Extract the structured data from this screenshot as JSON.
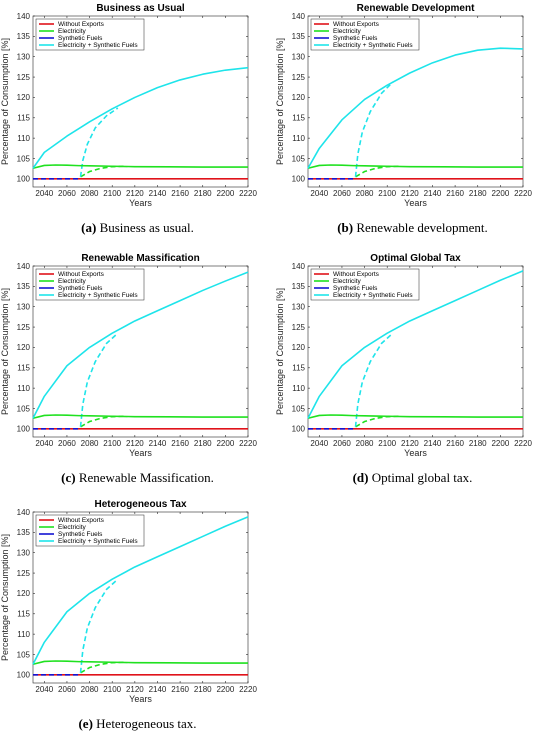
{
  "colors": {
    "without_exports": "#e0131a",
    "electricity": "#1fe11f",
    "synthetic_fuels": "#1414d2",
    "electricity_synthetic": "#1ee4ea"
  },
  "chart_data": [
    {
      "type": "line",
      "title": "Business as Usual",
      "caption_label": "(a)",
      "caption_text": "Business as usual.",
      "xlabel": "Years",
      "ylabel": "Percentage of Consumption [%]",
      "xlim": [
        2030,
        2220
      ],
      "ylim": [
        98,
        140
      ],
      "xticks": [
        2040,
        2060,
        2080,
        2100,
        2120,
        2140,
        2160,
        2180,
        2200,
        2220
      ],
      "yticks": [
        100,
        105,
        110,
        115,
        120,
        125,
        130,
        135,
        140
      ],
      "grid": false,
      "legend": "top-left",
      "series": [
        {
          "name": "Without Exports",
          "color": "#e0131a",
          "style": "solid",
          "x": [
            2030,
            2220
          ],
          "y": [
            100,
            100
          ]
        },
        {
          "name": "Electricity",
          "color": "#1fe11f",
          "style": "solid",
          "x": [
            2030,
            2040,
            2050,
            2060,
            2070,
            2080,
            2100,
            2120,
            2150,
            2180,
            2220
          ],
          "y": [
            102.6,
            103.3,
            103.4,
            103.35,
            103.25,
            103.2,
            103.1,
            103.0,
            102.95,
            102.9,
            102.9
          ]
        },
        {
          "name": "Synthetic Fuels",
          "color": "#1414d2",
          "style": "dashed",
          "x": [
            2030,
            2072
          ],
          "y": [
            100,
            100
          ]
        },
        {
          "name": "Electricity + Synthetic Fuels",
          "color": "#1ee4ea",
          "style": "solid",
          "x": [
            2030,
            2040,
            2060,
            2080,
            2100,
            2120,
            2140,
            2160,
            2180,
            2200,
            2220
          ],
          "y": [
            102.6,
            106.5,
            110.5,
            114.0,
            117.2,
            120.0,
            122.4,
            124.3,
            125.7,
            126.7,
            127.3
          ]
        },
        {
          "name": "",
          "color": "#1fe11f",
          "style": "dashed",
          "x": [
            2072,
            2080,
            2090,
            2100,
            2110
          ],
          "y": [
            100.5,
            101.8,
            102.6,
            103.0,
            103.1
          ]
        },
        {
          "name": "",
          "color": "#1ee4ea",
          "style": "dashed",
          "x": [
            2072,
            2074,
            2078,
            2085,
            2095,
            2105
          ],
          "y": [
            100.5,
            104.5,
            108.5,
            112.5,
            115.5,
            117.4
          ]
        }
      ]
    },
    {
      "type": "line",
      "title": "Renewable Development",
      "caption_label": "(b)",
      "caption_text": "Renewable development.",
      "xlabel": "Years",
      "ylabel": "Percentage of Consumption [%]",
      "xlim": [
        2030,
        2220
      ],
      "ylim": [
        98,
        140
      ],
      "xticks": [
        2040,
        2060,
        2080,
        2100,
        2120,
        2140,
        2160,
        2180,
        2200,
        2220
      ],
      "yticks": [
        100,
        105,
        110,
        115,
        120,
        125,
        130,
        135,
        140
      ],
      "grid": false,
      "legend": "top-left",
      "series": [
        {
          "name": "Without Exports",
          "color": "#e0131a",
          "style": "solid",
          "x": [
            2030,
            2220
          ],
          "y": [
            100,
            100
          ]
        },
        {
          "name": "Electricity",
          "color": "#1fe11f",
          "style": "solid",
          "x": [
            2030,
            2040,
            2050,
            2060,
            2070,
            2080,
            2100,
            2120,
            2150,
            2180,
            2220
          ],
          "y": [
            102.6,
            103.3,
            103.4,
            103.35,
            103.25,
            103.2,
            103.1,
            103.0,
            102.95,
            102.9,
            102.9
          ]
        },
        {
          "name": "Synthetic Fuels",
          "color": "#1414d2",
          "style": "dashed",
          "x": [
            2030,
            2072
          ],
          "y": [
            100,
            100
          ]
        },
        {
          "name": "Electricity + Synthetic Fuels",
          "color": "#1ee4ea",
          "style": "solid",
          "x": [
            2030,
            2040,
            2060,
            2080,
            2100,
            2120,
            2140,
            2160,
            2180,
            2200,
            2220
          ],
          "y": [
            102.6,
            107.5,
            114.5,
            119.5,
            123.0,
            126.0,
            128.5,
            130.4,
            131.6,
            132.1,
            131.9
          ]
        },
        {
          "name": "",
          "color": "#1fe11f",
          "style": "dashed",
          "x": [
            2072,
            2080,
            2090,
            2100,
            2110
          ],
          "y": [
            100.5,
            101.8,
            102.6,
            103.0,
            103.1
          ]
        },
        {
          "name": "",
          "color": "#1ee4ea",
          "style": "dashed",
          "x": [
            2072,
            2074,
            2078,
            2085,
            2095,
            2105
          ],
          "y": [
            100.5,
            106.0,
            111.5,
            116.5,
            121.0,
            123.8
          ]
        }
      ]
    },
    {
      "type": "line",
      "title": "Renewable Massification",
      "caption_label": "(c)",
      "caption_text": "Renewable Massification.",
      "xlabel": "Years",
      "ylabel": "Percentage of Consumption [%]",
      "xlim": [
        2030,
        2220
      ],
      "ylim": [
        98,
        140
      ],
      "xticks": [
        2040,
        2060,
        2080,
        2100,
        2120,
        2140,
        2160,
        2180,
        2200,
        2220
      ],
      "yticks": [
        100,
        105,
        110,
        115,
        120,
        125,
        130,
        135,
        140
      ],
      "grid": false,
      "legend": "top-left",
      "series": [
        {
          "name": "Without Exports",
          "color": "#e0131a",
          "style": "solid",
          "x": [
            2030,
            2220
          ],
          "y": [
            100,
            100
          ]
        },
        {
          "name": "Electricity",
          "color": "#1fe11f",
          "style": "solid",
          "x": [
            2030,
            2040,
            2050,
            2060,
            2070,
            2080,
            2100,
            2120,
            2150,
            2180,
            2220
          ],
          "y": [
            102.6,
            103.3,
            103.4,
            103.35,
            103.25,
            103.2,
            103.1,
            103.0,
            102.95,
            102.9,
            102.9
          ]
        },
        {
          "name": "Synthetic Fuels",
          "color": "#1414d2",
          "style": "dashed",
          "x": [
            2030,
            2072
          ],
          "y": [
            100,
            100
          ]
        },
        {
          "name": "Electricity + Synthetic Fuels",
          "color": "#1ee4ea",
          "style": "solid",
          "x": [
            2030,
            2040,
            2060,
            2080,
            2100,
            2120,
            2140,
            2160,
            2180,
            2200,
            2220
          ],
          "y": [
            102.6,
            108.0,
            115.5,
            120.0,
            123.5,
            126.5,
            129.0,
            131.5,
            134.0,
            136.3,
            138.5
          ]
        },
        {
          "name": "",
          "color": "#1fe11f",
          "style": "dashed",
          "x": [
            2072,
            2080,
            2090,
            2100,
            2110
          ],
          "y": [
            100.5,
            101.8,
            102.6,
            103.0,
            103.1
          ]
        },
        {
          "name": "",
          "color": "#1ee4ea",
          "style": "dashed",
          "x": [
            2072,
            2074,
            2078,
            2085,
            2095,
            2105
          ],
          "y": [
            100.5,
            106.0,
            111.5,
            116.5,
            121.0,
            123.5
          ]
        }
      ]
    },
    {
      "type": "line",
      "title": "Optimal Global Tax",
      "caption_label": "(d)",
      "caption_text": "Optimal global tax.",
      "xlabel": "Years",
      "ylabel": "Percentage of Consumption [%]",
      "xlim": [
        2030,
        2220
      ],
      "ylim": [
        98,
        140
      ],
      "xticks": [
        2040,
        2060,
        2080,
        2100,
        2120,
        2140,
        2160,
        2180,
        2200,
        2220
      ],
      "yticks": [
        100,
        105,
        110,
        115,
        120,
        125,
        130,
        135,
        140
      ],
      "grid": false,
      "legend": "top-left",
      "series": [
        {
          "name": "Without Exports",
          "color": "#e0131a",
          "style": "solid",
          "x": [
            2030,
            2220
          ],
          "y": [
            100,
            100
          ]
        },
        {
          "name": "Electricity",
          "color": "#1fe11f",
          "style": "solid",
          "x": [
            2030,
            2040,
            2050,
            2060,
            2070,
            2080,
            2100,
            2120,
            2150,
            2180,
            2220
          ],
          "y": [
            102.6,
            103.3,
            103.4,
            103.35,
            103.25,
            103.2,
            103.1,
            103.0,
            102.95,
            102.9,
            102.9
          ]
        },
        {
          "name": "Synthetic Fuels",
          "color": "#1414d2",
          "style": "dashed",
          "x": [
            2030,
            2072
          ],
          "y": [
            100,
            100
          ]
        },
        {
          "name": "Electricity + Synthetic Fuels",
          "color": "#1ee4ea",
          "style": "solid",
          "x": [
            2030,
            2040,
            2060,
            2080,
            2100,
            2120,
            2140,
            2160,
            2180,
            2200,
            2220
          ],
          "y": [
            102.6,
            108.0,
            115.5,
            120.0,
            123.5,
            126.5,
            129.0,
            131.5,
            134.0,
            136.5,
            138.8
          ]
        },
        {
          "name": "",
          "color": "#1fe11f",
          "style": "dashed",
          "x": [
            2072,
            2080,
            2090,
            2100,
            2110
          ],
          "y": [
            100.5,
            101.8,
            102.6,
            103.0,
            103.1
          ]
        },
        {
          "name": "",
          "color": "#1ee4ea",
          "style": "dashed",
          "x": [
            2072,
            2074,
            2078,
            2085,
            2095,
            2105
          ],
          "y": [
            100.5,
            106.0,
            111.5,
            116.5,
            121.0,
            123.5
          ]
        }
      ]
    },
    {
      "type": "line",
      "title": "Heterogeneous Tax",
      "caption_label": "(e)",
      "caption_text": "Heterogeneous tax.",
      "xlabel": "Years",
      "ylabel": "Percentage of Consumption [%]",
      "xlim": [
        2030,
        2220
      ],
      "ylim": [
        98,
        140
      ],
      "xticks": [
        2040,
        2060,
        2080,
        2100,
        2120,
        2140,
        2160,
        2180,
        2200,
        2220
      ],
      "yticks": [
        100,
        105,
        110,
        115,
        120,
        125,
        130,
        135,
        140
      ],
      "grid": false,
      "legend": "top-left",
      "series": [
        {
          "name": "Without Exports",
          "color": "#e0131a",
          "style": "solid",
          "x": [
            2030,
            2220
          ],
          "y": [
            100,
            100
          ]
        },
        {
          "name": "Electricity",
          "color": "#1fe11f",
          "style": "solid",
          "x": [
            2030,
            2040,
            2050,
            2060,
            2070,
            2080,
            2100,
            2120,
            2150,
            2180,
            2220
          ],
          "y": [
            102.6,
            103.3,
            103.4,
            103.35,
            103.25,
            103.2,
            103.1,
            103.0,
            102.95,
            102.9,
            102.9
          ]
        },
        {
          "name": "Synthetic Fuels",
          "color": "#1414d2",
          "style": "dashed",
          "x": [
            2030,
            2072
          ],
          "y": [
            100,
            100
          ]
        },
        {
          "name": "Electricity + Synthetic Fuels",
          "color": "#1ee4ea",
          "style": "solid",
          "x": [
            2030,
            2040,
            2060,
            2080,
            2100,
            2120,
            2140,
            2160,
            2180,
            2200,
            2220
          ],
          "y": [
            102.6,
            108.0,
            115.5,
            120.0,
            123.5,
            126.5,
            129.0,
            131.5,
            134.0,
            136.5,
            138.8
          ]
        },
        {
          "name": "",
          "color": "#1fe11f",
          "style": "dashed",
          "x": [
            2072,
            2080,
            2090,
            2100,
            2110
          ],
          "y": [
            100.5,
            101.8,
            102.6,
            103.0,
            103.1
          ]
        },
        {
          "name": "",
          "color": "#1ee4ea",
          "style": "dashed",
          "x": [
            2072,
            2074,
            2078,
            2085,
            2095,
            2105
          ],
          "y": [
            100.5,
            106.0,
            111.5,
            116.5,
            121.0,
            123.5
          ]
        }
      ]
    }
  ]
}
